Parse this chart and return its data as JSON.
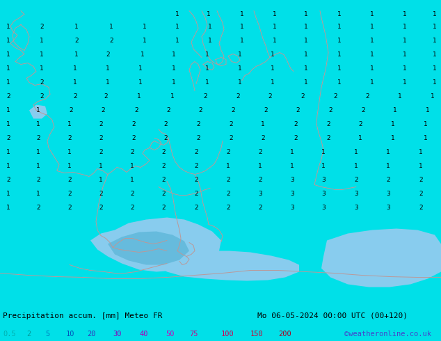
{
  "title_left": "Precipitation accum. [mm] Meteo FR",
  "title_right": "Mo 06-05-2024 00:00 UTC (00+120)",
  "credit": "©weatheronline.co.uk",
  "legend_values": [
    "0.5",
    "2",
    "5",
    "10",
    "20",
    "30",
    "40",
    "50",
    "75",
    "100",
    "150",
    "200"
  ],
  "legend_colors_text": [
    "#00b0b0",
    "#009999",
    "#0077bb",
    "#0055bb",
    "#3333bb",
    "#8800bb",
    "#aa00bb",
    "#cc00bb",
    "#cc0088",
    "#cc0055",
    "#cc0033",
    "#aa0022"
  ],
  "bg_color": "#00e0e8",
  "ocean_color": "#00dde5",
  "land_color": "#00dde5",
  "precip_light": "#88ccee",
  "precip_med": "#66bbdd",
  "precip_dark": "#44aacc",
  "contour_color": "#bb9999",
  "figsize": [
    6.34,
    4.9
  ],
  "dpi": 100,
  "title_fontsize": 8,
  "label_fontsize": 7,
  "credit_color": "#4444cc",
  "bottom_bar_color": "#00dde5",
  "number_color": "#000000",
  "number_fontsize": 6.5
}
